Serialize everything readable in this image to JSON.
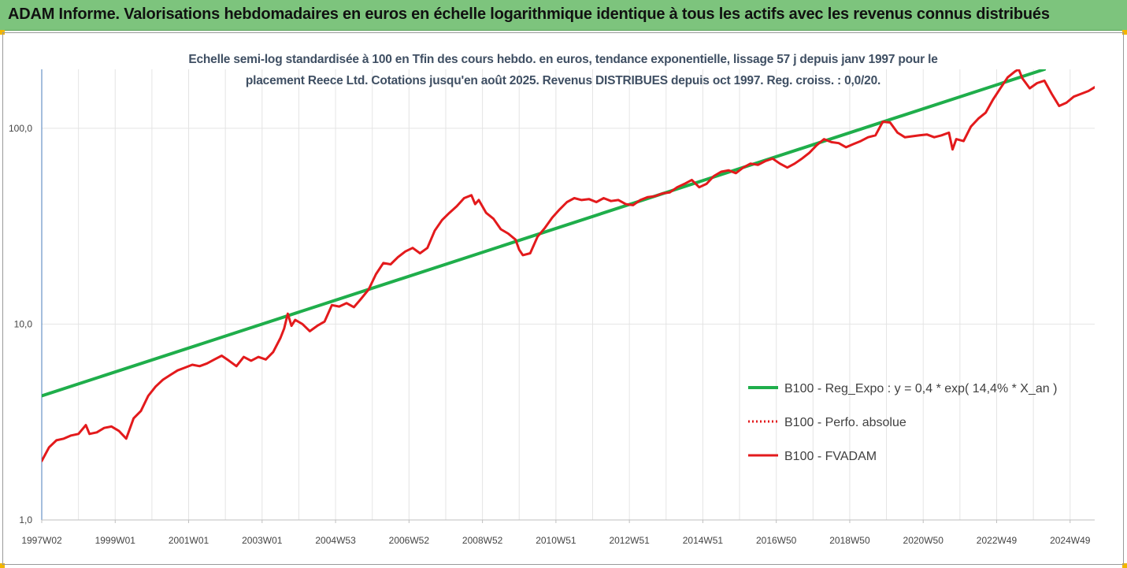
{
  "header": {
    "title": "ADAM Informe. Valorisations hebdomadaires en euros en échelle logarithmique identique à tous les actifs avec les revenus connus distribués",
    "background": "#7dc47d"
  },
  "chart_data": {
    "type": "line",
    "title": "",
    "subtitle_line1": "Echelle semi-log standardisée à 100 en Tfin des cours hebdo. en euros, tendance exponentielle, lissage 57 j depuis janv 1997 pour le",
    "subtitle_line2": "placement Reece Ltd. Cotations jusqu'en août 2025. Revenus DISTRIBUES depuis oct 1997. Reg. croiss. : 0,0/20.",
    "xlabel": "",
    "ylabel": "",
    "y_scale": "log",
    "ylim": [
      1,
      200
    ],
    "xlim": [
      1997.0,
      2025.67
    ],
    "y_ticks": [
      {
        "value": 1,
        "label": "1,0"
      },
      {
        "value": 10,
        "label": "10,0"
      },
      {
        "value": 100,
        "label": "100,0"
      }
    ],
    "x_ticks": [
      {
        "value": 1997.0,
        "label": "1997W02"
      },
      {
        "value": 1999.0,
        "label": "1999W01"
      },
      {
        "value": 2001.0,
        "label": "2001W01"
      },
      {
        "value": 2003.0,
        "label": "2003W01"
      },
      {
        "value": 2005.0,
        "label": "2004W53"
      },
      {
        "value": 2007.0,
        "label": "2006W52"
      },
      {
        "value": 2009.0,
        "label": "2008W52"
      },
      {
        "value": 2011.0,
        "label": "2010W51"
      },
      {
        "value": 2013.0,
        "label": "2012W51"
      },
      {
        "value": 2015.0,
        "label": "2014W51"
      },
      {
        "value": 2017.0,
        "label": "2016W50"
      },
      {
        "value": 2019.0,
        "label": "2018W50"
      },
      {
        "value": 2021.0,
        "label": "2020W50"
      },
      {
        "value": 2023.0,
        "label": "2022W49"
      },
      {
        "value": 2025.0,
        "label": "2024W49"
      }
    ],
    "grid": "vertical",
    "legend_position": "right",
    "series": [
      {
        "name": "B100 - Reg_Expo : y = 0,4 * exp( 14,4% *  X_an )",
        "color": "#1fae4b",
        "style": "solid",
        "points": [
          [
            1997.0,
            4.3
          ],
          [
            2024.3,
            200
          ]
        ]
      },
      {
        "name": "B100 - Perfo. absolue",
        "color": "#e31a1c",
        "style": "dotted",
        "points": []
      },
      {
        "name": "B100 - FVADAM",
        "color": "#e31a1c",
        "style": "solid",
        "points": [
          [
            1997.0,
            2.0
          ],
          [
            1997.2,
            2.35
          ],
          [
            1997.4,
            2.55
          ],
          [
            1997.6,
            2.6
          ],
          [
            1997.8,
            2.7
          ],
          [
            1998.0,
            2.75
          ],
          [
            1998.2,
            3.05
          ],
          [
            1998.3,
            2.75
          ],
          [
            1998.5,
            2.8
          ],
          [
            1998.7,
            2.95
          ],
          [
            1998.9,
            3.0
          ],
          [
            1999.1,
            2.85
          ],
          [
            1999.3,
            2.6
          ],
          [
            1999.5,
            3.3
          ],
          [
            1999.7,
            3.6
          ],
          [
            1999.9,
            4.3
          ],
          [
            2000.1,
            4.8
          ],
          [
            2000.3,
            5.2
          ],
          [
            2000.5,
            5.5
          ],
          [
            2000.7,
            5.8
          ],
          [
            2000.9,
            6.0
          ],
          [
            2001.1,
            6.2
          ],
          [
            2001.3,
            6.1
          ],
          [
            2001.5,
            6.3
          ],
          [
            2001.7,
            6.6
          ],
          [
            2001.9,
            6.9
          ],
          [
            2002.1,
            6.5
          ],
          [
            2002.3,
            6.1
          ],
          [
            2002.5,
            6.8
          ],
          [
            2002.7,
            6.5
          ],
          [
            2002.9,
            6.8
          ],
          [
            2003.1,
            6.6
          ],
          [
            2003.3,
            7.2
          ],
          [
            2003.5,
            8.5
          ],
          [
            2003.6,
            9.5
          ],
          [
            2003.7,
            11.3
          ],
          [
            2003.8,
            9.8
          ],
          [
            2003.9,
            10.5
          ],
          [
            2004.1,
            10.0
          ],
          [
            2004.3,
            9.2
          ],
          [
            2004.5,
            9.8
          ],
          [
            2004.7,
            10.3
          ],
          [
            2004.9,
            12.5
          ],
          [
            2005.1,
            12.3
          ],
          [
            2005.3,
            12.8
          ],
          [
            2005.5,
            12.2
          ],
          [
            2005.7,
            13.5
          ],
          [
            2005.9,
            15.0
          ],
          [
            2006.1,
            18.0
          ],
          [
            2006.3,
            20.5
          ],
          [
            2006.5,
            20.2
          ],
          [
            2006.7,
            22.0
          ],
          [
            2006.9,
            23.5
          ],
          [
            2007.1,
            24.5
          ],
          [
            2007.3,
            23.0
          ],
          [
            2007.5,
            24.5
          ],
          [
            2007.7,
            30.0
          ],
          [
            2007.9,
            34.0
          ],
          [
            2008.1,
            37.0
          ],
          [
            2008.3,
            40.0
          ],
          [
            2008.5,
            44.0
          ],
          [
            2008.7,
            45.5
          ],
          [
            2008.8,
            41.0
          ],
          [
            2008.9,
            43.0
          ],
          [
            2009.1,
            37.0
          ],
          [
            2009.3,
            34.5
          ],
          [
            2009.5,
            30.5
          ],
          [
            2009.7,
            29.0
          ],
          [
            2009.9,
            27.0
          ],
          [
            2010.0,
            24.0
          ],
          [
            2010.1,
            22.5
          ],
          [
            2010.3,
            23.0
          ],
          [
            2010.5,
            28.0
          ],
          [
            2010.7,
            31.0
          ],
          [
            2010.9,
            35.0
          ],
          [
            2011.1,
            38.5
          ],
          [
            2011.3,
            42.0
          ],
          [
            2011.5,
            44.0
          ],
          [
            2011.7,
            43.0
          ],
          [
            2011.9,
            43.5
          ],
          [
            2012.1,
            42.0
          ],
          [
            2012.3,
            44.0
          ],
          [
            2012.5,
            42.5
          ],
          [
            2012.7,
            43.0
          ],
          [
            2012.9,
            41.0
          ],
          [
            2013.1,
            40.5
          ],
          [
            2013.3,
            43.0
          ],
          [
            2013.5,
            44.5
          ],
          [
            2013.7,
            45.0
          ],
          [
            2013.9,
            46.5
          ],
          [
            2014.1,
            47.0
          ],
          [
            2014.3,
            50.0
          ],
          [
            2014.5,
            52.0
          ],
          [
            2014.7,
            54.5
          ],
          [
            2014.9,
            50.0
          ],
          [
            2015.1,
            52.0
          ],
          [
            2015.3,
            57.0
          ],
          [
            2015.5,
            60.0
          ],
          [
            2015.7,
            61.0
          ],
          [
            2015.9,
            59.0
          ],
          [
            2016.1,
            63.0
          ],
          [
            2016.3,
            66.0
          ],
          [
            2016.5,
            65.0
          ],
          [
            2016.7,
            68.0
          ],
          [
            2016.9,
            70.0
          ],
          [
            2017.1,
            66.0
          ],
          [
            2017.3,
            63.0
          ],
          [
            2017.5,
            66.0
          ],
          [
            2017.7,
            70.0
          ],
          [
            2017.9,
            75.0
          ],
          [
            2018.1,
            82.0
          ],
          [
            2018.3,
            88.0
          ],
          [
            2018.5,
            85.0
          ],
          [
            2018.7,
            84.0
          ],
          [
            2018.9,
            80.0
          ],
          [
            2019.1,
            83.0
          ],
          [
            2019.3,
            86.0
          ],
          [
            2019.5,
            90.0
          ],
          [
            2019.7,
            92.0
          ],
          [
            2019.9,
            108.0
          ],
          [
            2020.1,
            107.0
          ],
          [
            2020.3,
            95.0
          ],
          [
            2020.5,
            90.0
          ],
          [
            2020.7,
            91.0
          ],
          [
            2020.9,
            92.0
          ],
          [
            2021.1,
            93.0
          ],
          [
            2021.3,
            90.0
          ],
          [
            2021.5,
            92.0
          ],
          [
            2021.7,
            95.0
          ],
          [
            2021.8,
            78.0
          ],
          [
            2021.9,
            88.0
          ],
          [
            2022.1,
            86.0
          ],
          [
            2022.3,
            102.0
          ],
          [
            2022.5,
            112.0
          ],
          [
            2022.7,
            120.0
          ],
          [
            2022.9,
            140.0
          ],
          [
            2023.1,
            160.0
          ],
          [
            2023.3,
            182.0
          ],
          [
            2023.5,
            195.0
          ],
          [
            2023.6,
            200.0
          ],
          [
            2023.7,
            180.0
          ],
          [
            2023.9,
            160.0
          ],
          [
            2024.1,
            170.0
          ],
          [
            2024.3,
            175.0
          ],
          [
            2024.5,
            150.0
          ],
          [
            2024.7,
            130.0
          ],
          [
            2024.9,
            135.0
          ],
          [
            2025.1,
            145.0
          ],
          [
            2025.3,
            150.0
          ],
          [
            2025.5,
            155.0
          ],
          [
            2025.67,
            162.0
          ]
        ]
      }
    ]
  }
}
